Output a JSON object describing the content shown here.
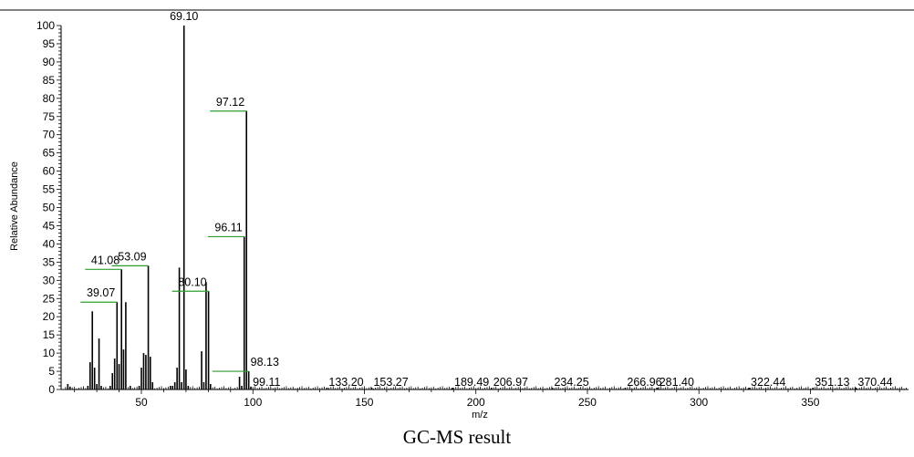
{
  "caption": "GC-MS result",
  "chart_data": {
    "type": "bar",
    "xlabel": "m/z",
    "ylabel": "Relative Abundance",
    "xlim": [
      14,
      394
    ],
    "ylim": [
      0,
      100
    ],
    "xticks": [
      50,
      100,
      150,
      200,
      250,
      300,
      350
    ],
    "yticks": [
      0,
      5,
      10,
      15,
      20,
      25,
      30,
      35,
      40,
      45,
      50,
      55,
      60,
      65,
      70,
      75,
      80,
      85,
      90,
      95,
      100
    ],
    "bar_color": "#000000",
    "marker_color": "#2e9e2e",
    "peaks": [
      {
        "x": 17,
        "y": 1.5
      },
      {
        "x": 18,
        "y": 0.8
      },
      {
        "x": 26,
        "y": 1.0
      },
      {
        "x": 27,
        "y": 7.5
      },
      {
        "x": 28,
        "y": 21.5
      },
      {
        "x": 29,
        "y": 6.0
      },
      {
        "x": 30,
        "y": 1.5
      },
      {
        "x": 31,
        "y": 14.0
      },
      {
        "x": 32,
        "y": 1.0
      },
      {
        "x": 36,
        "y": 1.0
      },
      {
        "x": 37,
        "y": 4.5
      },
      {
        "x": 38,
        "y": 8.5
      },
      {
        "x": 39.07,
        "y": 24.0,
        "label": "39.07"
      },
      {
        "x": 40,
        "y": 7.0
      },
      {
        "x": 41.08,
        "y": 33.0,
        "label": "41.08"
      },
      {
        "x": 42,
        "y": 11.0
      },
      {
        "x": 43,
        "y": 24.0
      },
      {
        "x": 45,
        "y": 1.0
      },
      {
        "x": 49,
        "y": 1.0
      },
      {
        "x": 50,
        "y": 6.0
      },
      {
        "x": 51,
        "y": 10.0
      },
      {
        "x": 52,
        "y": 9.5
      },
      {
        "x": 53.09,
        "y": 34.0,
        "label": "53.09"
      },
      {
        "x": 54,
        "y": 9.0
      },
      {
        "x": 55,
        "y": 2.0
      },
      {
        "x": 63,
        "y": 1.0
      },
      {
        "x": 64,
        "y": 1.0
      },
      {
        "x": 65,
        "y": 2.0
      },
      {
        "x": 66,
        "y": 6.0
      },
      {
        "x": 67,
        "y": 33.5
      },
      {
        "x": 68,
        "y": 2.0
      },
      {
        "x": 69.1,
        "y": 100,
        "label": "69.10"
      },
      {
        "x": 70,
        "y": 5.5
      },
      {
        "x": 71,
        "y": 1.0
      },
      {
        "x": 77,
        "y": 10.5
      },
      {
        "x": 78,
        "y": 2.0
      },
      {
        "x": 79,
        "y": 29.5
      },
      {
        "x": 80.1,
        "y": 27.0,
        "label": "80.10"
      },
      {
        "x": 81,
        "y": 1.5
      },
      {
        "x": 94,
        "y": 3.5
      },
      {
        "x": 95,
        "y": 1.0
      },
      {
        "x": 96.11,
        "y": 42.0,
        "label": "96.11"
      },
      {
        "x": 97.12,
        "y": 76.5,
        "label": "97.12"
      },
      {
        "x": 98.13,
        "y": 5.0,
        "label": "98.13"
      },
      {
        "x": 99.11,
        "y": 0.8,
        "label": "99.11"
      },
      {
        "x": 133.2,
        "y": 0.5,
        "label": "133.20"
      },
      {
        "x": 153.27,
        "y": 0.5,
        "label": "153.27"
      },
      {
        "x": 189.49,
        "y": 0.5,
        "label": "189.49"
      },
      {
        "x": 206.97,
        "y": 0.5,
        "label": "206.97"
      },
      {
        "x": 234.25,
        "y": 0.5,
        "label": "234.25"
      },
      {
        "x": 266.96,
        "y": 0.5,
        "label": "266.96"
      },
      {
        "x": 281.4,
        "y": 0.5,
        "label": "281.40"
      },
      {
        "x": 322.44,
        "y": 0.5,
        "label": "322.44"
      },
      {
        "x": 351.13,
        "y": 0.5,
        "label": "351.13"
      },
      {
        "x": 370.44,
        "y": 0.5,
        "label": "370.44"
      }
    ]
  }
}
